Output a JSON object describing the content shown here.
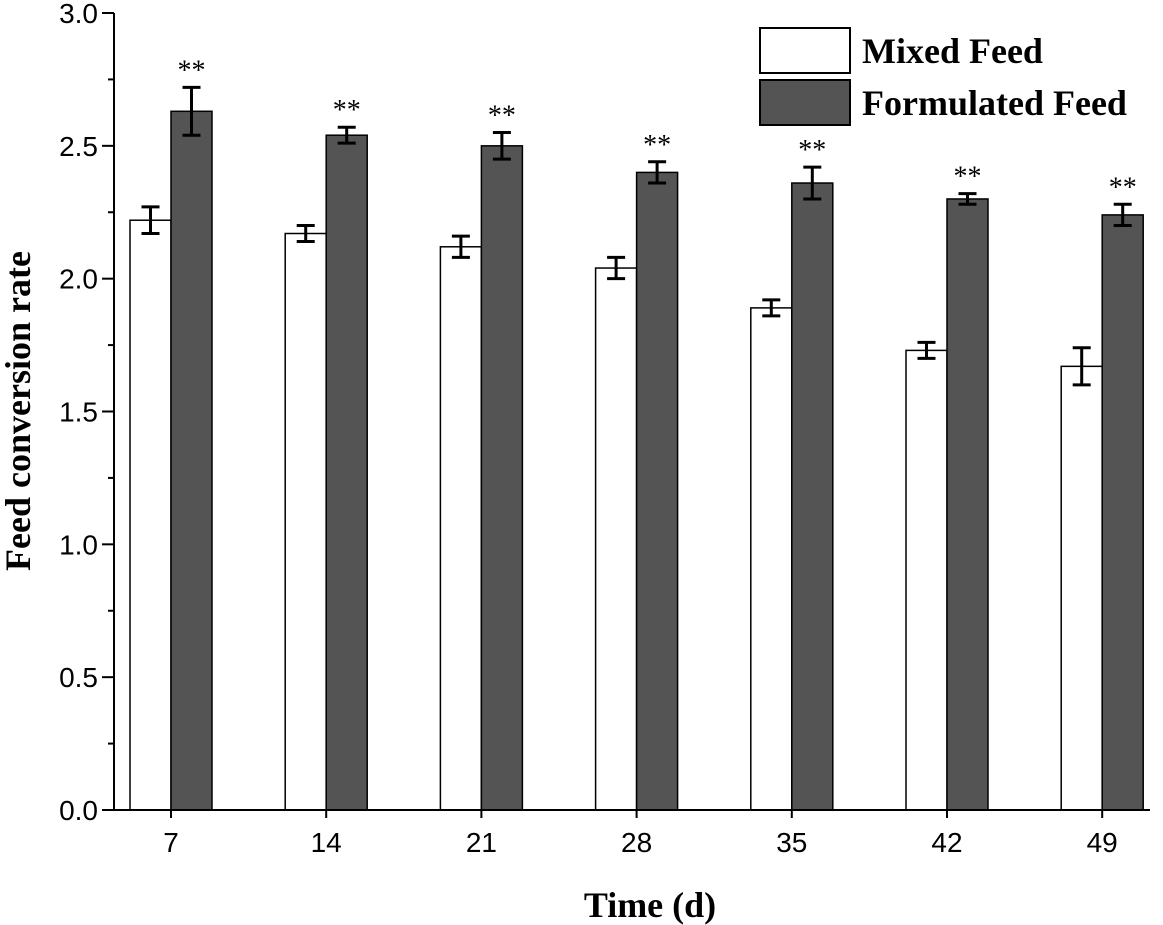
{
  "chart_data": {
    "type": "bar",
    "xlabel": "Time (d)",
    "ylabel": "Feed conversion rate",
    "categories": [
      "7",
      "14",
      "21",
      "28",
      "35",
      "42",
      "49"
    ],
    "ylim": [
      0,
      3.0
    ],
    "yticks": [
      "0.0",
      "0.5",
      "1.0",
      "1.5",
      "2.0",
      "2.5",
      "3.0"
    ],
    "grid": false,
    "legend": {
      "placement": "top-right"
    },
    "series": [
      {
        "name": "Mixed Feed",
        "color": "#ffffff",
        "values": [
          2.22,
          2.17,
          2.12,
          2.04,
          1.89,
          1.73,
          1.67
        ],
        "errors": [
          0.05,
          0.03,
          0.04,
          0.04,
          0.03,
          0.03,
          0.07
        ]
      },
      {
        "name": "Formulated Feed",
        "color": "#545454",
        "values": [
          2.63,
          2.54,
          2.5,
          2.4,
          2.36,
          2.3,
          2.24
        ],
        "errors": [
          0.09,
          0.03,
          0.05,
          0.04,
          0.06,
          0.02,
          0.04
        ]
      }
    ],
    "annotations": [
      "**",
      "**",
      "**",
      "**",
      "**",
      "**",
      "**"
    ]
  }
}
